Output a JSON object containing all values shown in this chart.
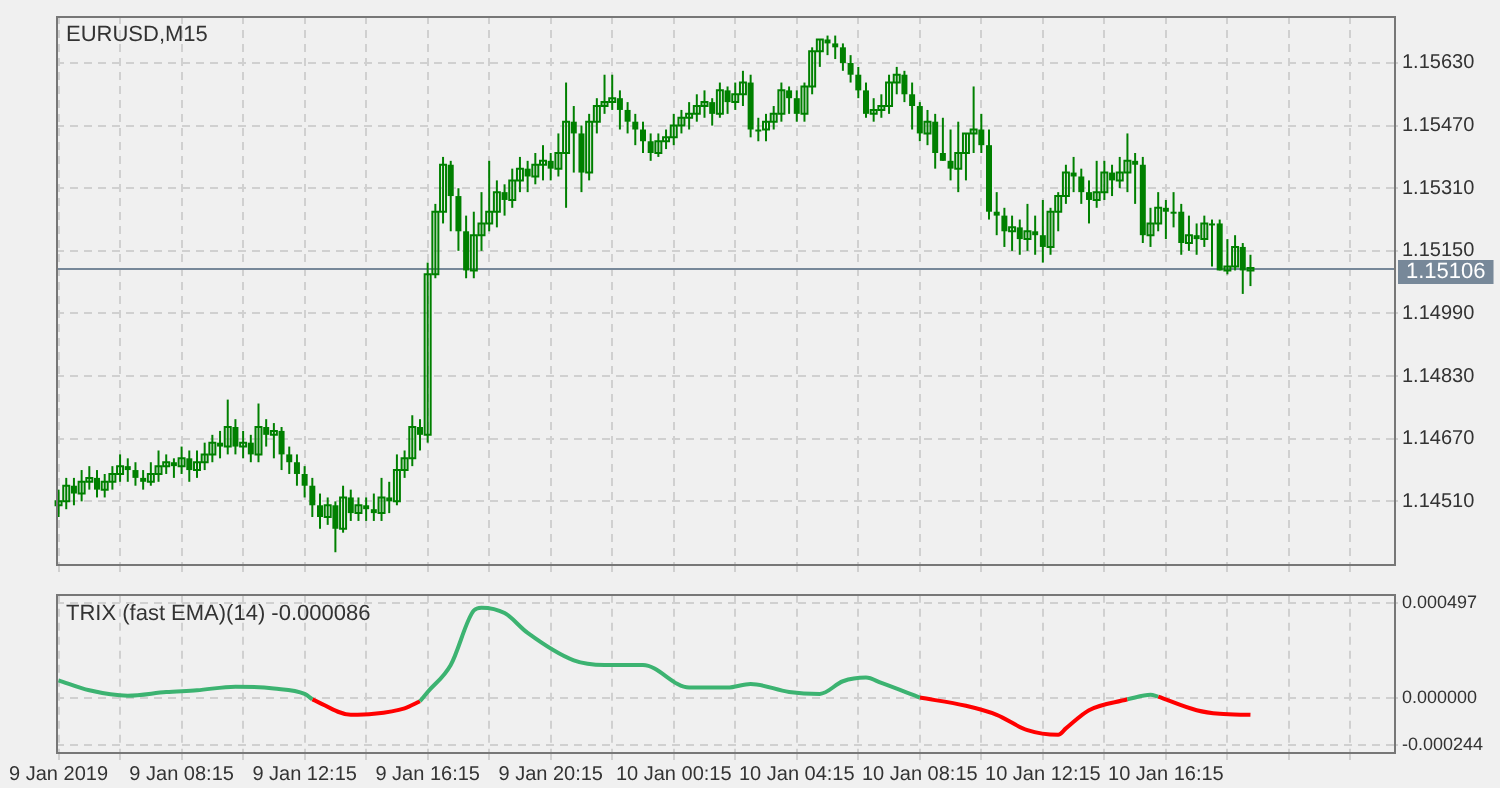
{
  "chart_data": [
    {
      "type": "candlestick",
      "title": "EURUSD,M15",
      "color": "#008000",
      "tick_labels": "y",
      "grid": true,
      "xlim": [
        "2019-01-09T04:10",
        "2019-01-10T23:40"
      ],
      "xticks": [
        {
          "value": "2019-01-09T04:15",
          "label": null
        },
        {
          "value": "2019-01-09T06:15",
          "label": null
        },
        {
          "value": "2019-01-09T08:15",
          "label": null
        },
        {
          "value": "2019-01-09T10:15",
          "label": null
        },
        {
          "value": "2019-01-09T12:15",
          "label": null
        },
        {
          "value": "2019-01-09T14:15",
          "label": null
        },
        {
          "value": "2019-01-09T16:15",
          "label": null
        },
        {
          "value": "2019-01-09T18:15",
          "label": null
        },
        {
          "value": "2019-01-09T20:15",
          "label": null
        },
        {
          "value": "2019-01-09T22:15",
          "label": null
        },
        {
          "value": "2019-01-10T00:15",
          "label": null
        },
        {
          "value": "2019-01-10T02:15",
          "label": null
        },
        {
          "value": "2019-01-10T04:15",
          "label": null
        },
        {
          "value": "2019-01-10T06:15",
          "label": null
        },
        {
          "value": "2019-01-10T08:15",
          "label": null
        },
        {
          "value": "2019-01-10T10:15",
          "label": null
        },
        {
          "value": "2019-01-10T12:15",
          "label": null
        },
        {
          "value": "2019-01-10T14:15",
          "label": null
        },
        {
          "value": "2019-01-10T16:15",
          "label": null
        },
        {
          "value": "2019-01-10T18:15",
          "label": null
        },
        {
          "value": "2019-01-10T20:15",
          "label": null
        },
        {
          "value": "2019-01-10T22:15",
          "label": null
        }
      ],
      "ylim": [
        1.1435,
        1.1575
      ],
      "yticks": [
        {
          "value": 1.1451,
          "label": "1.14510"
        },
        {
          "value": 1.1467,
          "label": "1.14670"
        },
        {
          "value": 1.1483,
          "label": "1.14830"
        },
        {
          "value": 1.1499,
          "label": "1.14990"
        },
        {
          "value": 1.1515,
          "label": "1.15150"
        },
        {
          "value": 1.1531,
          "label": "1.15310"
        },
        {
          "value": 1.1547,
          "label": "1.15470"
        },
        {
          "value": 1.1563,
          "label": "1.15630"
        }
      ],
      "ref_lines": [
        {
          "axis": "y",
          "value": 1.15106,
          "label": "1.15106",
          "color": "#778899"
        }
      ],
      "x": [
        "2019-01-09T04:15",
        "2019-01-09T04:30",
        "2019-01-09T04:45",
        "2019-01-09T05:00",
        "2019-01-09T05:15",
        "2019-01-09T05:30",
        "2019-01-09T05:45",
        "2019-01-09T06:00",
        "2019-01-09T06:15",
        "2019-01-09T06:30",
        "2019-01-09T06:45",
        "2019-01-09T07:00",
        "2019-01-09T07:15",
        "2019-01-09T07:30",
        "2019-01-09T07:45",
        "2019-01-09T08:00",
        "2019-01-09T08:15",
        "2019-01-09T08:30",
        "2019-01-09T08:45",
        "2019-01-09T09:00",
        "2019-01-09T09:15",
        "2019-01-09T09:30",
        "2019-01-09T09:45",
        "2019-01-09T10:00",
        "2019-01-09T10:15",
        "2019-01-09T10:30",
        "2019-01-09T10:45",
        "2019-01-09T11:00",
        "2019-01-09T11:15",
        "2019-01-09T11:30",
        "2019-01-09T11:45",
        "2019-01-09T12:00",
        "2019-01-09T12:15",
        "2019-01-09T12:30",
        "2019-01-09T12:45",
        "2019-01-09T13:00",
        "2019-01-09T13:15",
        "2019-01-09T13:30",
        "2019-01-09T13:45",
        "2019-01-09T14:00",
        "2019-01-09T14:15",
        "2019-01-09T14:30",
        "2019-01-09T14:45",
        "2019-01-09T15:00",
        "2019-01-09T15:15",
        "2019-01-09T15:30",
        "2019-01-09T15:45",
        "2019-01-09T16:00",
        "2019-01-09T16:15",
        "2019-01-09T16:30",
        "2019-01-09T16:45",
        "2019-01-09T17:00",
        "2019-01-09T17:15",
        "2019-01-09T17:30",
        "2019-01-09T17:45",
        "2019-01-09T18:00",
        "2019-01-09T18:15",
        "2019-01-09T18:30",
        "2019-01-09T18:45",
        "2019-01-09T19:00",
        "2019-01-09T19:15",
        "2019-01-09T19:30",
        "2019-01-09T19:45",
        "2019-01-09T20:00",
        "2019-01-09T20:15",
        "2019-01-09T20:30",
        "2019-01-09T20:45",
        "2019-01-09T21:00",
        "2019-01-09T21:15",
        "2019-01-09T21:30",
        "2019-01-09T21:45",
        "2019-01-09T22:00",
        "2019-01-09T22:15",
        "2019-01-09T22:30",
        "2019-01-09T22:45",
        "2019-01-09T23:00",
        "2019-01-09T23:15",
        "2019-01-09T23:30",
        "2019-01-09T23:45",
        "2019-01-10T00:00",
        "2019-01-10T00:15",
        "2019-01-10T00:30",
        "2019-01-10T00:45",
        "2019-01-10T01:00",
        "2019-01-10T01:15",
        "2019-01-10T01:30",
        "2019-01-10T01:45",
        "2019-01-10T02:00",
        "2019-01-10T02:15",
        "2019-01-10T02:30",
        "2019-01-10T02:45",
        "2019-01-10T03:00",
        "2019-01-10T03:15",
        "2019-01-10T03:30",
        "2019-01-10T03:45",
        "2019-01-10T04:00",
        "2019-01-10T04:15",
        "2019-01-10T04:30",
        "2019-01-10T04:45",
        "2019-01-10T05:00",
        "2019-01-10T05:15",
        "2019-01-10T05:30",
        "2019-01-10T05:45",
        "2019-01-10T06:00",
        "2019-01-10T06:15",
        "2019-01-10T06:30",
        "2019-01-10T06:45",
        "2019-01-10T07:00",
        "2019-01-10T07:15",
        "2019-01-10T07:30",
        "2019-01-10T07:45",
        "2019-01-10T08:00",
        "2019-01-10T08:15",
        "2019-01-10T08:30",
        "2019-01-10T08:45",
        "2019-01-10T09:00",
        "2019-01-10T09:15",
        "2019-01-10T09:30",
        "2019-01-10T09:45",
        "2019-01-10T10:00",
        "2019-01-10T10:15",
        "2019-01-10T10:30",
        "2019-01-10T10:45",
        "2019-01-10T11:00",
        "2019-01-10T11:15",
        "2019-01-10T11:30",
        "2019-01-10T11:45",
        "2019-01-10T12:00",
        "2019-01-10T12:15",
        "2019-01-10T12:30",
        "2019-01-10T12:45",
        "2019-01-10T13:00",
        "2019-01-10T13:15",
        "2019-01-10T13:30",
        "2019-01-10T13:45",
        "2019-01-10T14:00",
        "2019-01-10T14:15",
        "2019-01-10T14:30",
        "2019-01-10T14:45",
        "2019-01-10T15:00",
        "2019-01-10T15:15",
        "2019-01-10T15:30",
        "2019-01-10T15:45",
        "2019-01-10T16:00",
        "2019-01-10T16:15",
        "2019-01-10T16:30",
        "2019-01-10T16:45",
        "2019-01-10T17:00",
        "2019-01-10T17:15",
        "2019-01-10T17:30",
        "2019-01-10T17:45",
        "2019-01-10T18:00",
        "2019-01-10T18:15",
        "2019-01-10T18:30",
        "2019-01-10T18:45",
        "2019-01-10T19:00"
      ],
      "ohlc": [
        [
          1.145,
          1.1454,
          1.1447,
          1.1451
        ],
        [
          1.1451,
          1.1457,
          1.1449,
          1.1455
        ],
        [
          1.1455,
          1.1457,
          1.145,
          1.1453
        ],
        [
          1.1453,
          1.1459,
          1.1451,
          1.1456
        ],
        [
          1.1456,
          1.146,
          1.1454,
          1.1457
        ],
        [
          1.1457,
          1.1459,
          1.1452,
          1.1454
        ],
        [
          1.1454,
          1.1458,
          1.1452,
          1.1456
        ],
        [
          1.1456,
          1.146,
          1.1454,
          1.1458
        ],
        [
          1.1458,
          1.1463,
          1.1456,
          1.146
        ],
        [
          1.146,
          1.1462,
          1.1456,
          1.1459
        ],
        [
          1.1459,
          1.1461,
          1.1455,
          1.1457
        ],
        [
          1.1457,
          1.1459,
          1.1454,
          1.1456
        ],
        [
          1.1456,
          1.1461,
          1.1455,
          1.1458
        ],
        [
          1.1458,
          1.1464,
          1.1456,
          1.146
        ],
        [
          1.146,
          1.1463,
          1.1458,
          1.1461
        ],
        [
          1.1461,
          1.1462,
          1.1457,
          1.146
        ],
        [
          1.146,
          1.1465,
          1.1458,
          1.1462
        ],
        [
          1.1462,
          1.1464,
          1.1456,
          1.1459
        ],
        [
          1.1459,
          1.1464,
          1.1457,
          1.1461
        ],
        [
          1.1461,
          1.1466,
          1.1459,
          1.1463
        ],
        [
          1.1463,
          1.1468,
          1.1461,
          1.1466
        ],
        [
          1.1466,
          1.1469,
          1.1462,
          1.1465
        ],
        [
          1.1465,
          1.1477,
          1.1463,
          1.147
        ],
        [
          1.147,
          1.1472,
          1.1463,
          1.1465
        ],
        [
          1.1465,
          1.1469,
          1.1462,
          1.1466
        ],
        [
          1.1466,
          1.1468,
          1.1461,
          1.1463
        ],
        [
          1.1463,
          1.1476,
          1.1461,
          1.147
        ],
        [
          1.147,
          1.1472,
          1.1465,
          1.1468
        ],
        [
          1.1468,
          1.1471,
          1.1462,
          1.1469
        ],
        [
          1.1469,
          1.147,
          1.1459,
          1.1463
        ],
        [
          1.1463,
          1.1465,
          1.1458,
          1.1461
        ],
        [
          1.1461,
          1.1463,
          1.1455,
          1.1458
        ],
        [
          1.1458,
          1.146,
          1.1452,
          1.1455
        ],
        [
          1.1455,
          1.1457,
          1.1447,
          1.145
        ],
        [
          1.145,
          1.1453,
          1.1444,
          1.1447
        ],
        [
          1.1447,
          1.1452,
          1.1445,
          1.145
        ],
        [
          1.145,
          1.1451,
          1.1438,
          1.1444
        ],
        [
          1.1444,
          1.1455,
          1.1443,
          1.1452
        ],
        [
          1.1452,
          1.1454,
          1.1446,
          1.1448
        ],
        [
          1.1448,
          1.1452,
          1.1446,
          1.145
        ],
        [
          1.145,
          1.1452,
          1.1446,
          1.1449
        ],
        [
          1.1449,
          1.1453,
          1.1446,
          1.1448
        ],
        [
          1.1448,
          1.1457,
          1.1446,
          1.1452
        ],
        [
          1.1452,
          1.1456,
          1.1448,
          1.1451
        ],
        [
          1.1451,
          1.1463,
          1.145,
          1.1459
        ],
        [
          1.1459,
          1.1464,
          1.1457,
          1.1462
        ],
        [
          1.1462,
          1.1473,
          1.146,
          1.147
        ],
        [
          1.147,
          1.1472,
          1.1464,
          1.1468
        ],
        [
          1.1468,
          1.1512,
          1.1466,
          1.1509
        ],
        [
          1.1509,
          1.1527,
          1.1508,
          1.1525
        ],
        [
          1.1525,
          1.1539,
          1.1522,
          1.1537
        ],
        [
          1.1537,
          1.1538,
          1.152,
          1.1529
        ],
        [
          1.1529,
          1.1531,
          1.1515,
          1.152
        ],
        [
          1.152,
          1.1524,
          1.1508,
          1.151
        ],
        [
          1.151,
          1.1525,
          1.1508,
          1.1519
        ],
        [
          1.1519,
          1.153,
          1.1515,
          1.1522
        ],
        [
          1.1522,
          1.1538,
          1.152,
          1.1525
        ],
        [
          1.1525,
          1.1533,
          1.1521,
          1.153
        ],
        [
          1.153,
          1.1532,
          1.1524,
          1.1528
        ],
        [
          1.1528,
          1.1536,
          1.1526,
          1.1533
        ],
        [
          1.1533,
          1.1539,
          1.153,
          1.1536
        ],
        [
          1.1536,
          1.1538,
          1.153,
          1.1534
        ],
        [
          1.1534,
          1.154,
          1.1532,
          1.1537
        ],
        [
          1.1537,
          1.1542,
          1.1533,
          1.1538
        ],
        [
          1.1538,
          1.154,
          1.1533,
          1.1536
        ],
        [
          1.1536,
          1.1545,
          1.1534,
          1.154
        ],
        [
          1.154,
          1.1558,
          1.1526,
          1.1548
        ],
        [
          1.1548,
          1.1552,
          1.1535,
          1.1545
        ],
        [
          1.1545,
          1.1547,
          1.153,
          1.1535
        ],
        [
          1.1535,
          1.155,
          1.1533,
          1.1548
        ],
        [
          1.1548,
          1.1554,
          1.1545,
          1.1552
        ],
        [
          1.1552,
          1.156,
          1.155,
          1.1553
        ],
        [
          1.1553,
          1.156,
          1.1551,
          1.1554
        ],
        [
          1.1554,
          1.1556,
          1.1546,
          1.1551
        ],
        [
          1.1551,
          1.1553,
          1.1545,
          1.1548
        ],
        [
          1.1548,
          1.155,
          1.1542,
          1.1546
        ],
        [
          1.1546,
          1.1548,
          1.154,
          1.1543
        ],
        [
          1.1543,
          1.1545,
          1.1538,
          1.154
        ],
        [
          1.154,
          1.1545,
          1.1539,
          1.1543
        ],
        [
          1.1543,
          1.1546,
          1.1541,
          1.1544
        ],
        [
          1.1544,
          1.155,
          1.1542,
          1.1547
        ],
        [
          1.1547,
          1.1551,
          1.1545,
          1.1549
        ],
        [
          1.1549,
          1.1553,
          1.1546,
          1.155
        ],
        [
          1.155,
          1.1555,
          1.1548,
          1.1552
        ],
        [
          1.1552,
          1.1556,
          1.1549,
          1.1553
        ],
        [
          1.1553,
          1.1554,
          1.1547,
          1.155
        ],
        [
          1.155,
          1.1558,
          1.1549,
          1.1556
        ],
        [
          1.1556,
          1.1557,
          1.155,
          1.1553
        ],
        [
          1.1553,
          1.1558,
          1.1551,
          1.1555
        ],
        [
          1.1555,
          1.1561,
          1.1552,
          1.1558
        ],
        [
          1.1558,
          1.156,
          1.1544,
          1.1546
        ],
        [
          1.1546,
          1.1549,
          1.1543,
          1.1546
        ],
        [
          1.1546,
          1.155,
          1.1543,
          1.1548
        ],
        [
          1.1548,
          1.1552,
          1.1546,
          1.155
        ],
        [
          1.155,
          1.1558,
          1.1548,
          1.1556
        ],
        [
          1.1556,
          1.1557,
          1.155,
          1.1554
        ],
        [
          1.1554,
          1.1556,
          1.1548,
          1.155
        ],
        [
          1.155,
          1.1558,
          1.1548,
          1.1557
        ],
        [
          1.1557,
          1.1567,
          1.1555,
          1.1566
        ],
        [
          1.1566,
          1.1569,
          1.1562,
          1.1569
        ],
        [
          1.1569,
          1.157,
          1.1565,
          1.1568
        ],
        [
          1.1568,
          1.157,
          1.1564,
          1.1567
        ],
        [
          1.1567,
          1.1568,
          1.1561,
          1.1563
        ],
        [
          1.1563,
          1.1565,
          1.1558,
          1.156
        ],
        [
          1.156,
          1.1562,
          1.1554,
          1.1556
        ],
        [
          1.1556,
          1.1558,
          1.1549,
          1.155
        ],
        [
          1.155,
          1.1554,
          1.1548,
          1.1551
        ],
        [
          1.1551,
          1.1555,
          1.1549,
          1.1552
        ],
        [
          1.1552,
          1.156,
          1.155,
          1.1558
        ],
        [
          1.1558,
          1.1562,
          1.1555,
          1.156
        ],
        [
          1.156,
          1.1561,
          1.1553,
          1.1555
        ],
        [
          1.1555,
          1.1558,
          1.1546,
          1.1552
        ],
        [
          1.1552,
          1.1553,
          1.1543,
          1.1545
        ],
        [
          1.1545,
          1.1551,
          1.1542,
          1.1548
        ],
        [
          1.1548,
          1.155,
          1.1536,
          1.154
        ],
        [
          1.154,
          1.1549,
          1.1538,
          1.1538
        ],
        [
          1.1538,
          1.1546,
          1.1533,
          1.1536
        ],
        [
          1.1536,
          1.1548,
          1.153,
          1.154
        ],
        [
          1.154,
          1.1545,
          1.1533,
          1.1545
        ],
        [
          1.1545,
          1.1557,
          1.154,
          1.1546
        ],
        [
          1.1546,
          1.155,
          1.154,
          1.1542
        ],
        [
          1.1542,
          1.1546,
          1.1523,
          1.1525
        ],
        [
          1.1525,
          1.153,
          1.1519,
          1.1524
        ],
        [
          1.1524,
          1.1526,
          1.1516,
          1.152
        ],
        [
          1.152,
          1.1524,
          1.1515,
          1.1521
        ],
        [
          1.1521,
          1.1523,
          1.1514,
          1.1518
        ],
        [
          1.1518,
          1.1527,
          1.1515,
          1.152
        ],
        [
          1.152,
          1.1524,
          1.1514,
          1.1519
        ],
        [
          1.1519,
          1.1528,
          1.1512,
          1.1516
        ],
        [
          1.1516,
          1.1526,
          1.1514,
          1.1525
        ],
        [
          1.1525,
          1.153,
          1.152,
          1.1529
        ],
        [
          1.1529,
          1.1537,
          1.1527,
          1.1535
        ],
        [
          1.1535,
          1.1539,
          1.153,
          1.1534
        ],
        [
          1.1534,
          1.1536,
          1.1527,
          1.153
        ],
        [
          1.153,
          1.1533,
          1.1522,
          1.1528
        ],
        [
          1.1528,
          1.1538,
          1.1526,
          1.153
        ],
        [
          1.153,
          1.1538,
          1.1528,
          1.1535
        ],
        [
          1.1535,
          1.1537,
          1.1529,
          1.1533
        ],
        [
          1.1533,
          1.1539,
          1.1531,
          1.1535
        ],
        [
          1.1535,
          1.1545,
          1.153,
          1.1538
        ],
        [
          1.1538,
          1.154,
          1.1527,
          1.1537
        ],
        [
          1.1537,
          1.1539,
          1.1517,
          1.1519
        ],
        [
          1.1519,
          1.1526,
          1.1516,
          1.1522
        ],
        [
          1.1522,
          1.153,
          1.152,
          1.1526
        ],
        [
          1.1526,
          1.1528,
          1.1518,
          1.1525
        ],
        [
          1.1525,
          1.153,
          1.1521,
          1.1525
        ],
        [
          1.1525,
          1.1527,
          1.1514,
          1.1517
        ],
        [
          1.1517,
          1.1524,
          1.1515,
          1.1519
        ],
        [
          1.1519,
          1.1522,
          1.1514,
          1.1518
        ],
        [
          1.1518,
          1.1524,
          1.1516,
          1.1522
        ],
        [
          1.1522,
          1.1523,
          1.1511,
          1.1522
        ],
        [
          1.1522,
          1.1523,
          1.151,
          1.151
        ],
        [
          1.151,
          1.1518,
          1.1509,
          1.1511
        ],
        [
          1.1511,
          1.1519,
          1.151,
          1.1516
        ],
        [
          1.1516,
          1.1517,
          1.1504,
          1.151
        ],
        [
          1.151,
          1.1514,
          1.1506,
          1.15106
        ]
      ]
    },
    {
      "type": "line",
      "title": "TRIX (fast EMA)(14) -0.000086",
      "grid": true,
      "xlim": [
        "2019-01-09T04:10",
        "2019-01-10T23:40"
      ],
      "xticks": [
        {
          "value": "2019-01-09T04:15",
          "label": "9 Jan 2019"
        },
        {
          "value": "2019-01-09T06:15",
          "label": null
        },
        {
          "value": "2019-01-09T08:15",
          "label": "9 Jan 08:15"
        },
        {
          "value": "2019-01-09T10:15",
          "label": null
        },
        {
          "value": "2019-01-09T12:15",
          "label": "9 Jan 12:15"
        },
        {
          "value": "2019-01-09T14:15",
          "label": null
        },
        {
          "value": "2019-01-09T16:15",
          "label": "9 Jan 16:15"
        },
        {
          "value": "2019-01-09T18:15",
          "label": null
        },
        {
          "value": "2019-01-09T20:15",
          "label": "9 Jan 20:15"
        },
        {
          "value": "2019-01-09T22:15",
          "label": null
        },
        {
          "value": "2019-01-10T00:15",
          "label": "10 Jan 00:15"
        },
        {
          "value": "2019-01-10T02:15",
          "label": null
        },
        {
          "value": "2019-01-10T04:15",
          "label": "10 Jan 04:15"
        },
        {
          "value": "2019-01-10T06:15",
          "label": null
        },
        {
          "value": "2019-01-10T08:15",
          "label": "10 Jan 08:15"
        },
        {
          "value": "2019-01-10T10:15",
          "label": null
        },
        {
          "value": "2019-01-10T12:15",
          "label": "10 Jan 12:15"
        },
        {
          "value": "2019-01-10T14:15",
          "label": null
        },
        {
          "value": "2019-01-10T16:15",
          "label": "10 Jan 16:15"
        },
        {
          "value": "2019-01-10T18:15",
          "label": null
        },
        {
          "value": "2019-01-10T20:15",
          "label": null
        },
        {
          "value": "2019-01-10T22:15",
          "label": null
        }
      ],
      "ylim": [
        -0.00028,
        0.00054
      ],
      "yticks": [
        -0.000244,
        {
          "value": 0,
          "label": "0.000000"
        },
        0.000497
      ],
      "series": [
        {
          "color": "#3cb371",
          "x": [
            "2019-01-09T04:15",
            "2019-01-09T05:15",
            "2019-01-09T06:30",
            "2019-01-09T07:45",
            "2019-01-09T08:45",
            "2019-01-09T10:00",
            "2019-01-09T11:15",
            "2019-01-09T12:15",
            "2019-01-09T12:30",
            "2019-01-09T14:00",
            "2019-01-09T16:00",
            "2019-01-09T16:15",
            "2019-01-09T17:00",
            "2019-01-09T17:45",
            "2019-01-09T18:00",
            "2019-01-09T18:45",
            "2019-01-09T19:30",
            "2019-01-09T21:00",
            "2019-01-09T22:00",
            "2019-01-09T23:15",
            "2019-01-10T00:45",
            "2019-01-10T02:00",
            "2019-01-10T02:45",
            "2019-01-10T04:00",
            "2019-01-10T05:00",
            "2019-01-10T05:45",
            "2019-01-10T06:30",
            "2019-01-10T07:00",
            "2019-01-10T08:15",
            "2019-01-10T12:00",
            "2019-01-10T15:00",
            "2019-01-10T15:45",
            "2019-01-10T16:00"
          ],
          "values": [
            9.4e-05,
            4.2e-05,
            1.4e-05,
            3.3e-05,
            4.2e-05,
            6.1e-05,
            5.1e-05,
            2.3e-05,
            -5e-06,
            null,
            -1.5e-05,
            3.3e-05,
            0.000174,
            0.000458,
            0.000473,
            0.000445,
            0.000341,
            0.000198,
            0.000174,
            0.000174,
            5.6e-05,
            5.6e-05,
            7.5e-05,
            3.3e-05,
            2.3e-05,
            8.9e-05,
            0.000108,
            8e-05,
            4e-06,
            null,
            -5e-06,
            1.8e-05,
            9e-06
          ]
        },
        {
          "color": "#ff0000",
          "x": [
            "2019-01-09T12:30",
            "2019-01-09T13:45",
            "2019-01-09T14:30",
            "2019-01-09T15:30",
            "2019-01-09T16:00",
            "2019-01-10T00:00",
            "2019-01-10T08:15",
            "2019-01-10T09:45",
            "2019-01-10T10:45",
            "2019-01-10T11:45",
            "2019-01-10T12:45",
            "2019-01-10T13:00",
            "2019-01-10T13:45",
            "2019-01-10T15:00",
            "2019-01-10T15:30",
            "2019-01-10T16:00",
            "2019-01-10T17:15",
            "2019-01-10T18:00",
            "2019-01-10T19:00"
          ],
          "values": [
            -5e-06,
            -8.6e-05,
            -8.1e-05,
            -5.2e-05,
            -1.5e-05,
            null,
            4e-06,
            -3.9e-05,
            -8.6e-05,
            -0.000166,
            -0.00019,
            -0.000157,
            -6.2e-05,
            -5e-06,
            null,
            9e-06,
            -6.2e-05,
            -8.1e-05,
            -8.6e-05
          ]
        }
      ]
    }
  ]
}
